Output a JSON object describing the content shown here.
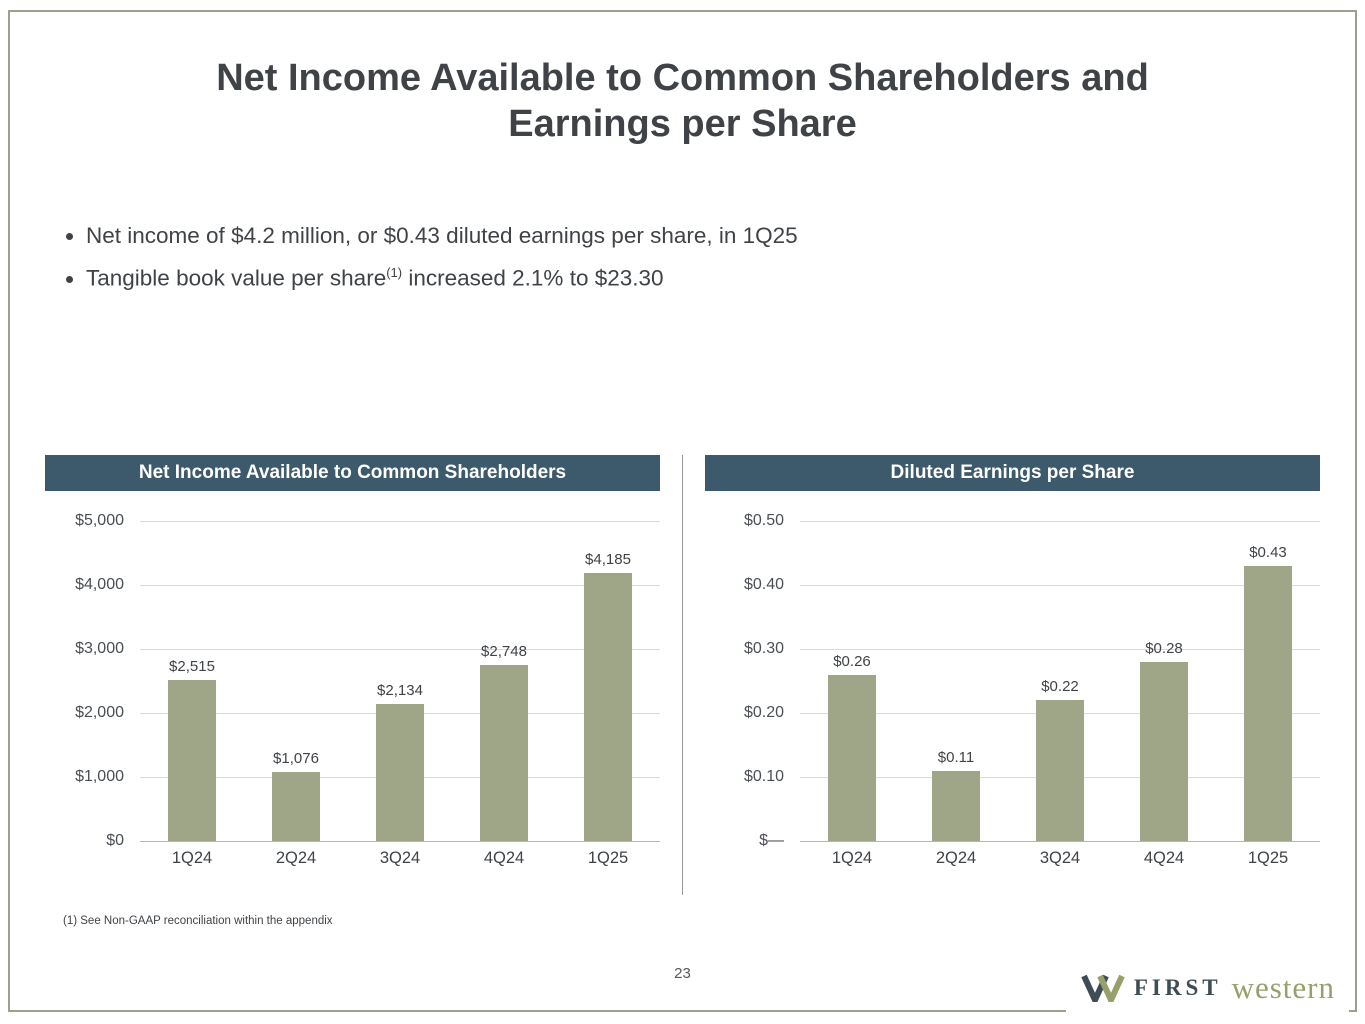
{
  "slide": {
    "title": "Net Income Available to Common Shareholders and Earnings per Share",
    "bullets": [
      {
        "text": "Net income of $4.2 million, or $0.43 diluted earnings per share, in 1Q25"
      },
      {
        "text_before_sup": "Tangible book value per share",
        "sup": "(1)",
        "text_after_sup": " increased 2.1% to $23.30"
      }
    ],
    "footnote": "(1) See Non-GAAP reconciliation within the appendix",
    "page_number": "23",
    "logo": {
      "first": "FIRST",
      "western": "western"
    }
  },
  "colors": {
    "bar_fill": "#9EA687",
    "chart_header_bg": "#3D5A6C",
    "chart_header_text": "#FFFFFF",
    "border_frame": "#9AA18C",
    "title_text": "#3F4347"
  },
  "chart_data": [
    {
      "type": "bar",
      "title": "Net Income Available to Common Shareholders",
      "categories": [
        "1Q24",
        "2Q24",
        "3Q24",
        "4Q24",
        "1Q25"
      ],
      "values": [
        2515,
        1076,
        2134,
        2748,
        4185
      ],
      "value_labels": [
        "$2,515",
        "$1,076",
        "$2,134",
        "$2,748",
        "$4,185"
      ],
      "ylim": [
        0,
        5000
      ],
      "yticks": [
        {
          "value": 0,
          "label": "$0"
        },
        {
          "value": 1000,
          "label": "$1,000"
        },
        {
          "value": 2000,
          "label": "$2,000"
        },
        {
          "value": 3000,
          "label": "$3,000"
        },
        {
          "value": 4000,
          "label": "$4,000"
        },
        {
          "value": 5000,
          "label": "$5,000"
        }
      ],
      "grid": true,
      "legend": false
    },
    {
      "type": "bar",
      "title": "Diluted Earnings per Share",
      "categories": [
        "1Q24",
        "2Q24",
        "3Q24",
        "4Q24",
        "1Q25"
      ],
      "values": [
        0.26,
        0.11,
        0.22,
        0.28,
        0.43
      ],
      "value_labels": [
        "$0.26",
        "$0.11",
        "$0.22",
        "$0.28",
        "$0.43"
      ],
      "ylim": [
        0,
        0.5
      ],
      "yticks": [
        {
          "value": 0,
          "label": "$—"
        },
        {
          "value": 0.1,
          "label": "$0.10"
        },
        {
          "value": 0.2,
          "label": "$0.20"
        },
        {
          "value": 0.3,
          "label": "$0.30"
        },
        {
          "value": 0.4,
          "label": "$0.40"
        },
        {
          "value": 0.5,
          "label": "$0.50"
        }
      ],
      "grid": true,
      "legend": false
    }
  ]
}
